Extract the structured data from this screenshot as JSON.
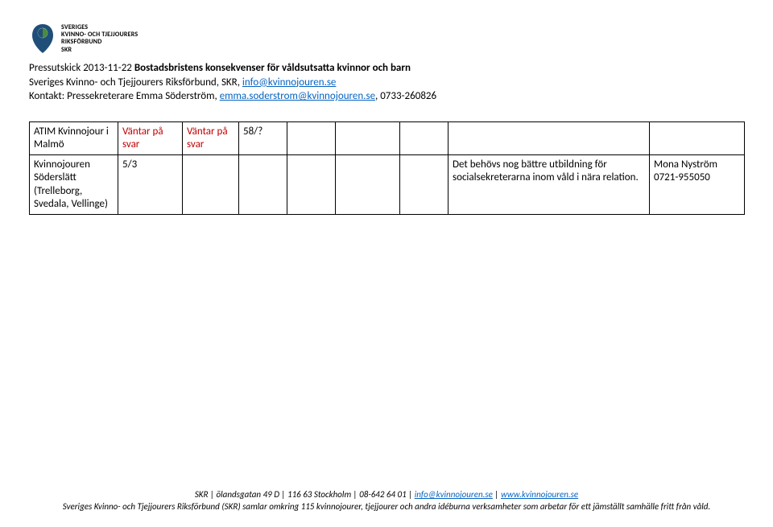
{
  "logo": {
    "org_line1": "SVERIGES",
    "org_line2": "KVINNO- OCH TJEJJOURERS",
    "org_line3": "RIKSFÖRBUND",
    "org_line4": "SKR",
    "color_blue": "#1f4e79",
    "color_green": "#4a8a3a"
  },
  "header": {
    "prefix": "Pressutskick 2013-11-22 ",
    "title": "Bostadsbristens konsekvenser för våldsutsatta kvinnor och barn",
    "line2_prefix": "Sveriges Kvinno- och Tjejjourers Riksförbund, SKR, ",
    "line2_link": "info@kvinnojouren.se",
    "line3_prefix": "Kontakt: Pressekreterare Emma Söderström, ",
    "line3_link": "emma.soderstrom@kvinnojouren.se",
    "line3_suffix": ", 0733-260826"
  },
  "table": {
    "rows": [
      {
        "c1": "ATIM Kvinnojour i Malmö",
        "c2": "Väntar på svar",
        "c3": "Väntar på svar",
        "c4": "58/?",
        "c5": "",
        "c6": "",
        "c7": "",
        "c8": "",
        "c9": "",
        "red_cols": [
          "c2",
          "c3"
        ]
      },
      {
        "c1": "Kvinnojouren Söderslätt (Trelleborg, Svedala, Vellinge)",
        "c2": "5/3",
        "c3": "",
        "c4": "",
        "c5": "",
        "c6": "",
        "c7": "",
        "c8": "Det behövs nog bättre utbildning för socialsekreterarna inom våld i nära relation.",
        "c9": "Mona Nyström 0721-955050",
        "red_cols": []
      }
    ],
    "columns": [
      "c1",
      "c2",
      "c3",
      "c4",
      "c5",
      "c6",
      "c7",
      "c8",
      "c9"
    ]
  },
  "footer": {
    "line1_prefix": "SKR | ölandsgatan 49 D | 116 63 Stockholm | 08-642 64 01 | ",
    "line1_link1": "info@kvinnojouren.se",
    "line1_mid": " | ",
    "line1_link2": "www.kvinnojouren.se",
    "line2": "Sveriges Kvinno- och Tjejjourers Riksförbund (SKR) samlar omkring 115 kvinnojourer, tjejjourer och andra idéburna verksamheter som arbetar för ett jämställt samhälle fritt från våld."
  }
}
